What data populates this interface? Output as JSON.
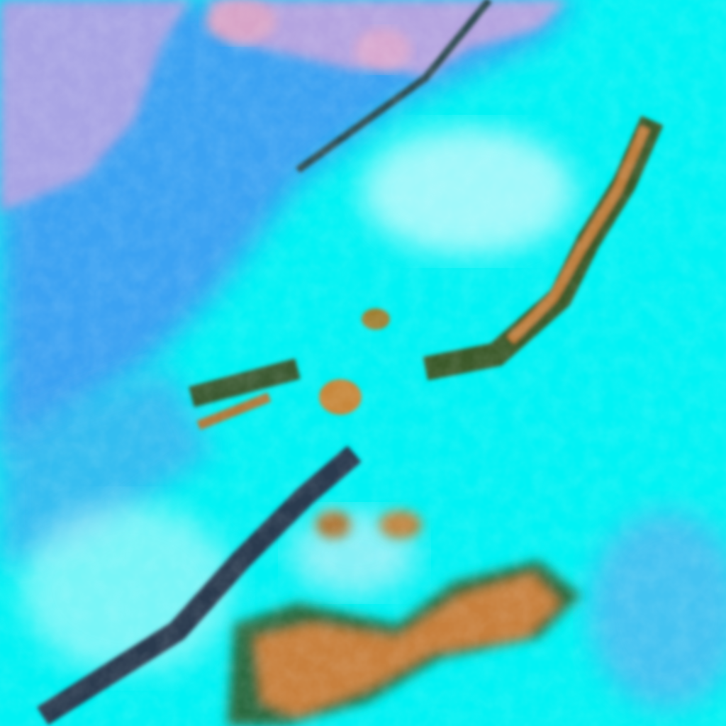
{
  "image": {
    "kind": "false-color satellite imagery",
    "colors": {
      "cloud_cyan": "#00f4f6",
      "bright_cloud": "#c8fafa",
      "clear_sky_blue": "#3aa0f0",
      "land_mauve": "#a8a0e0",
      "land_pink": "#d8a0c8",
      "convective_orange": "#c8803c",
      "dark_edge": "#1a2a6a",
      "green_edge": "#3a6a30"
    }
  }
}
